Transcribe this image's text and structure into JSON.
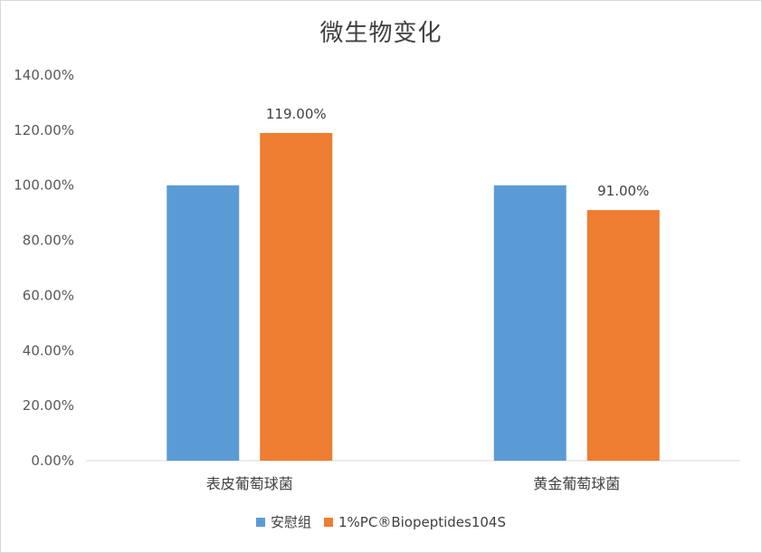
{
  "chart_data": {
    "type": "bar",
    "title": "微生物变化",
    "categories": [
      "表皮葡萄球菌",
      "黄金葡萄球菌"
    ],
    "series": [
      {
        "name": "安慰组",
        "values": [
          1.0,
          1.0
        ],
        "color": "#5b9bd5",
        "data_labels": [
          "",
          ""
        ]
      },
      {
        "name": "1%PC®Biopeptides104S",
        "values": [
          1.19,
          0.91
        ],
        "color": "#ed7d31",
        "data_labels": [
          "119.00%",
          "91.00%"
        ]
      }
    ],
    "y_ticks": [
      "0.00%",
      "20.00%",
      "40.00%",
      "60.00%",
      "80.00%",
      "100.00%",
      "120.00%",
      "140.00%"
    ],
    "ylim": [
      0,
      1.4
    ],
    "legend_position": "bottom",
    "grid": false
  }
}
